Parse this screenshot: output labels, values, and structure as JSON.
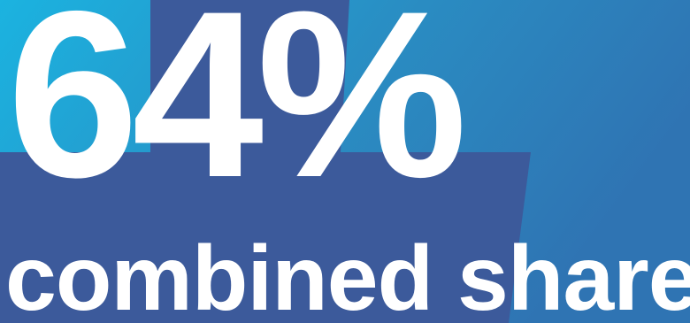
{
  "headline": {
    "value": "64%"
  },
  "subheadline": {
    "text": "combined share"
  },
  "colors": {
    "background_light": "#1bb3e0",
    "background_mid": "#2a8cc2",
    "background_dark": "#2f74b3",
    "panel": "#3c5a9b",
    "text": "#ffffff"
  }
}
